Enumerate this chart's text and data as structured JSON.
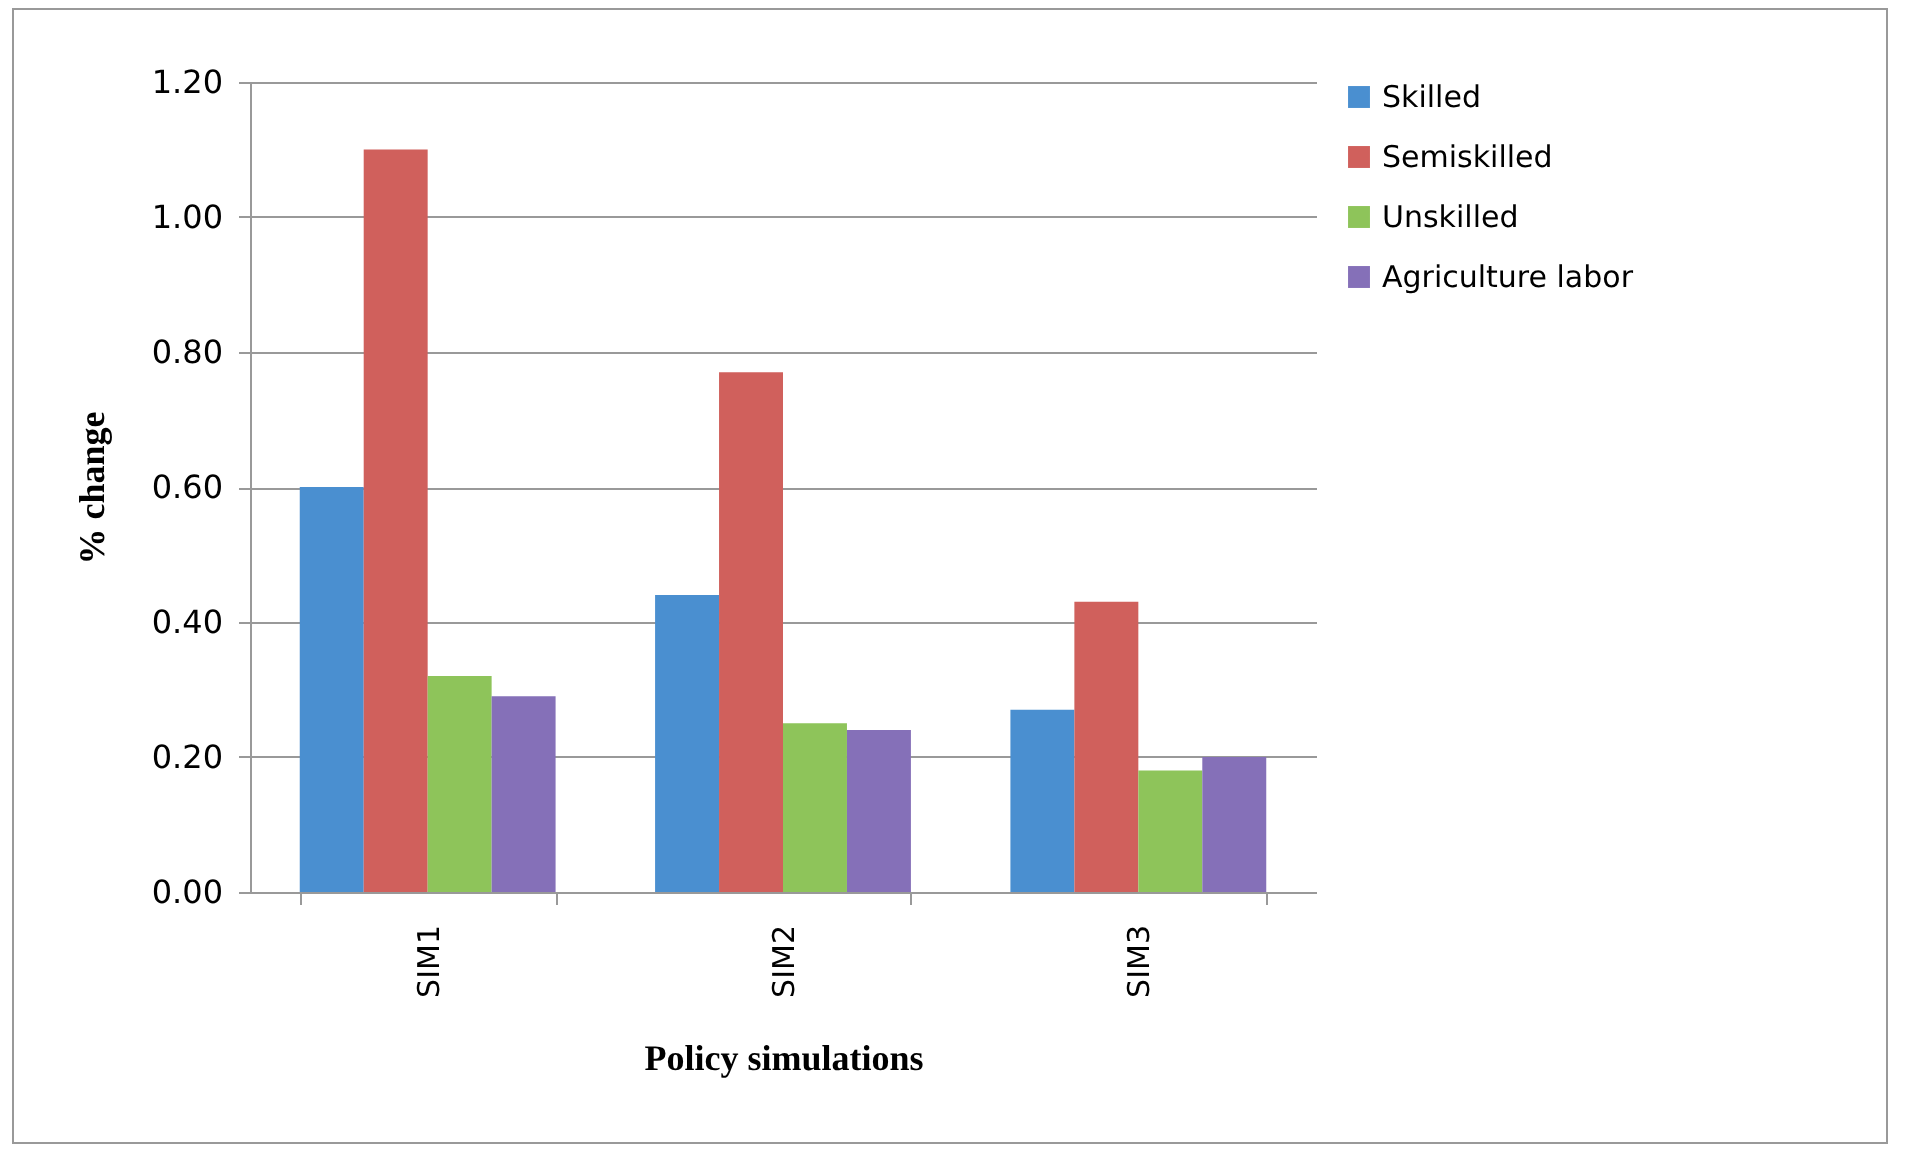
{
  "chart_data": {
    "type": "bar",
    "xlabel": "Policy simulations",
    "ylabel": "% change",
    "categories": [
      "SIM1",
      "SIM2",
      "SIM3"
    ],
    "series": [
      {
        "name": "Skilled",
        "color": "#4a8fd0",
        "values": [
          0.6,
          0.44,
          0.27
        ]
      },
      {
        "name": "Semiskilled",
        "color": "#d0605c",
        "values": [
          1.1,
          0.77,
          0.43
        ]
      },
      {
        "name": "Unskilled",
        "color": "#8ec45a",
        "values": [
          0.32,
          0.25,
          0.18
        ]
      },
      {
        "name": "Agriculture labor",
        "color": "#8570b8",
        "values": [
          0.29,
          0.24,
          0.2
        ]
      }
    ],
    "ylim": [
      0,
      1.2
    ],
    "yticks": [
      {
        "value": 0,
        "label": "0.00"
      },
      {
        "value": 0.2,
        "label": "0.20"
      },
      {
        "value": 0.4,
        "label": "0.40"
      },
      {
        "value": 0.6,
        "label": "0.60"
      },
      {
        "value": 0.8,
        "label": "0.80"
      },
      {
        "value": 1.0,
        "label": "1.00"
      },
      {
        "value": 1.2,
        "label": "1.20"
      }
    ],
    "grid": "y",
    "legend": "right"
  }
}
